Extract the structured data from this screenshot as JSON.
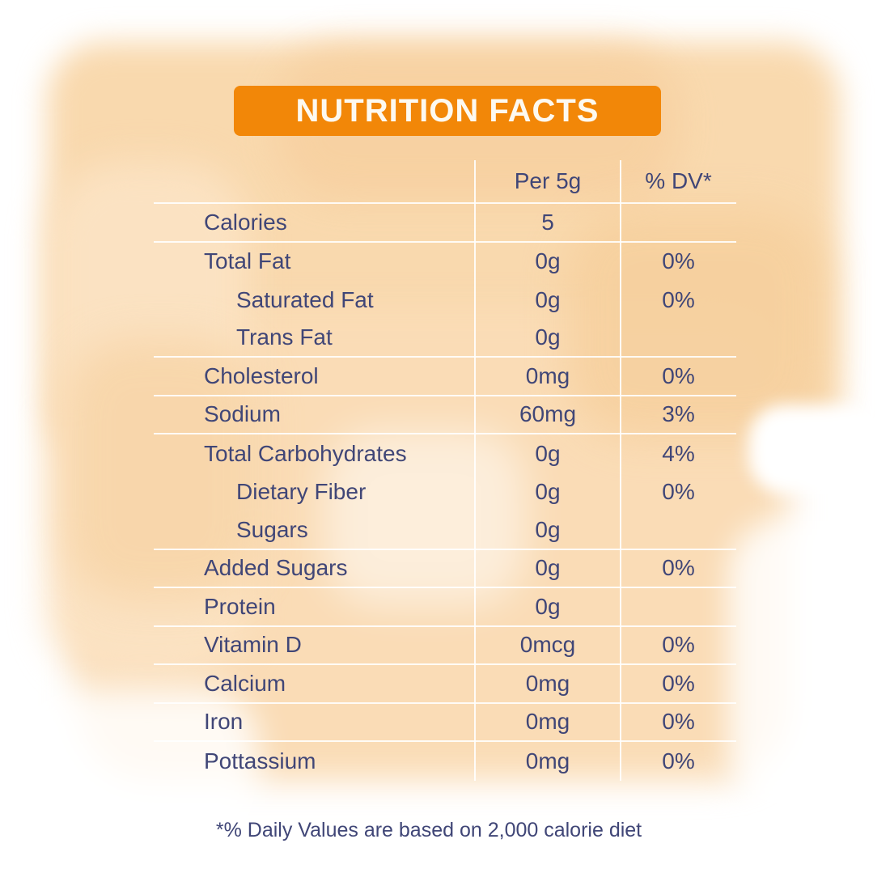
{
  "title": "NUTRITION FACTS",
  "colors": {
    "accent_orange": "#F28708",
    "text_navy": "#404677",
    "wash_peach": "#F9D9AE",
    "separator": "rgba(255,255,255,0.88)"
  },
  "table": {
    "columns": [
      "",
      "Per 5g",
      "% DV*"
    ],
    "rows": [
      {
        "label": "Calories",
        "value": "5",
        "dv": "",
        "indent": false,
        "separator_after": true
      },
      {
        "label": "Total Fat",
        "value": "0g",
        "dv": "0%",
        "indent": false,
        "separator_after": false
      },
      {
        "label": "Saturated Fat",
        "value": "0g",
        "dv": "0%",
        "indent": true,
        "separator_after": false
      },
      {
        "label": "Trans Fat",
        "value": "0g",
        "dv": "",
        "indent": true,
        "separator_after": true
      },
      {
        "label": "Cholesterol",
        "value": "0mg",
        "dv": "0%",
        "indent": false,
        "separator_after": true
      },
      {
        "label": "Sodium",
        "value": "60mg",
        "dv": "3%",
        "indent": false,
        "separator_after": true
      },
      {
        "label": "Total Carbohydrates",
        "value": "0g",
        "dv": "4%",
        "indent": false,
        "separator_after": false
      },
      {
        "label": "Dietary Fiber",
        "value": "0g",
        "dv": "0%",
        "indent": true,
        "separator_after": false
      },
      {
        "label": "Sugars",
        "value": "0g",
        "dv": "",
        "indent": true,
        "separator_after": true
      },
      {
        "label": "Added Sugars",
        "value": "0g",
        "dv": "0%",
        "indent": false,
        "separator_after": true
      },
      {
        "label": "Protein",
        "value": "0g",
        "dv": "",
        "indent": false,
        "separator_after": true
      },
      {
        "label": "Vitamin D",
        "value": "0mcg",
        "dv": "0%",
        "indent": false,
        "separator_after": true
      },
      {
        "label": "Calcium",
        "value": "0mg",
        "dv": "0%",
        "indent": false,
        "separator_after": true
      },
      {
        "label": "Iron",
        "value": "0mg",
        "dv": "0%",
        "indent": false,
        "separator_after": true
      },
      {
        "label": "Pottassium",
        "value": "0mg",
        "dv": "0%",
        "indent": false,
        "separator_after": false
      }
    ]
  },
  "footnote": "*% Daily Values are based on 2,000 calorie diet"
}
